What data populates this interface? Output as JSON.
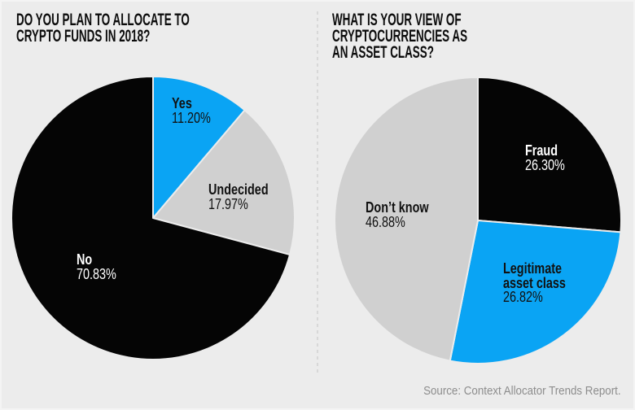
{
  "page": {
    "background_color": "#ececec",
    "divider_color": "#d8d8d8",
    "source_note": "Source: Context Allocator Trends Report."
  },
  "colors": {
    "blue": "#0aa4f4",
    "black": "#050505",
    "gray": "#d0d0d0",
    "title_text": "#0c0c0c",
    "source_text": "#8d8d8d"
  },
  "chart_data": [
    {
      "type": "pie",
      "title": "DO YOU PLAN TO ALLOCATE TO\nCRYPTO FUNDS IN 2018?",
      "start_angle_deg": 0,
      "direction": "clockwise",
      "legend_position": "none",
      "slices": [
        {
          "label": "Yes",
          "value": 11.2,
          "pct_label": "11.20%",
          "color": "#0aa4f4",
          "label_color": "#111111"
        },
        {
          "label": "Undecided",
          "value": 17.97,
          "pct_label": "17.97%",
          "color": "#d0d0d0",
          "label_color": "#111111"
        },
        {
          "label": "No",
          "value": 70.83,
          "pct_label": "70.83%",
          "color": "#050505",
          "label_color": "#ffffff"
        }
      ]
    },
    {
      "type": "pie",
      "title": "WHAT IS YOUR VIEW OF\nCRYPTOCURRENCIES AS\nAN ASSET CLASS?",
      "start_angle_deg": 0,
      "direction": "clockwise",
      "legend_position": "none",
      "slices": [
        {
          "label": "Fraud",
          "value": 26.3,
          "pct_label": "26.30%",
          "color": "#050505",
          "label_color": "#ffffff"
        },
        {
          "label": "Legitimate asset class",
          "value": 26.82,
          "pct_label": "26.82%",
          "color": "#0aa4f4",
          "label_color": "#111111"
        },
        {
          "label": "Don’t know",
          "value": 46.88,
          "pct_label": "46.88%",
          "color": "#d0d0d0",
          "label_color": "#111111"
        }
      ]
    }
  ]
}
